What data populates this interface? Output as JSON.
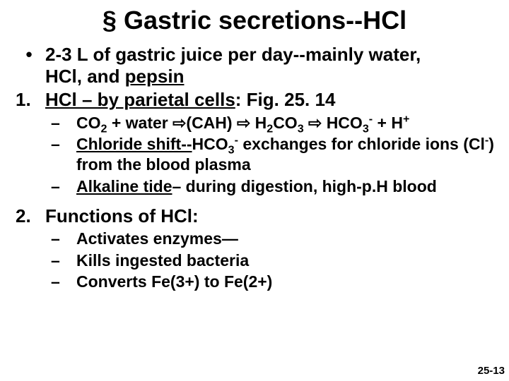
{
  "title_prefix": "§ ",
  "title_text": "Gastric secretions--HCl",
  "line1_marker": "•",
  "line1_a": "2-3  L of gastric juice per day--mainly water,",
  "line1_b": "HCl, and ",
  "line1_c": "pepsin",
  "line2_marker": "1.",
  "line2_a": "HCl – by parietal cells",
  "line2_b": ": Fig. 25. 14",
  "sub1_marker": "–",
  "sub1_a": "CO",
  "sub1_co2": "2",
  "sub1_b": " + water ⇨(CAH) ⇨ H",
  "sub1_h2": "2",
  "sub1_c": "CO",
  "sub1_h2co3": "3",
  "sub1_d": " ⇨ HCO",
  "sub1_hco3": "3",
  "sub1_sup_minus": "-",
  "sub1_e": " + H",
  "sub1_sup_plus": "+",
  "sub2_marker": "–",
  "sub2_a": "Chloride shift--",
  "sub2_b": "HCO",
  "sub2_hco3": "3",
  "sub2_sup_minus": "-",
  "sub2_c": " exchanges for chloride ions (Cl",
  "sub2_clsup": "-",
  "sub2_d": ") from the blood plasma",
  "sub3_marker": "–",
  "sub3_a": "Alkaline tide",
  "sub3_b": "– during digestion, high-p.H blood",
  "line3_marker": "2.",
  "line3_a": "Functions of HCl:",
  "sub4_marker": "–",
  "sub4_a": "Activates enzymes—",
  "sub5_marker": "–",
  "sub5_a": "Kills ingested bacteria",
  "sub6_marker": "–",
  "sub6_a": "Converts Fe(3+) to Fe(2+)",
  "pagenum": "25-13"
}
